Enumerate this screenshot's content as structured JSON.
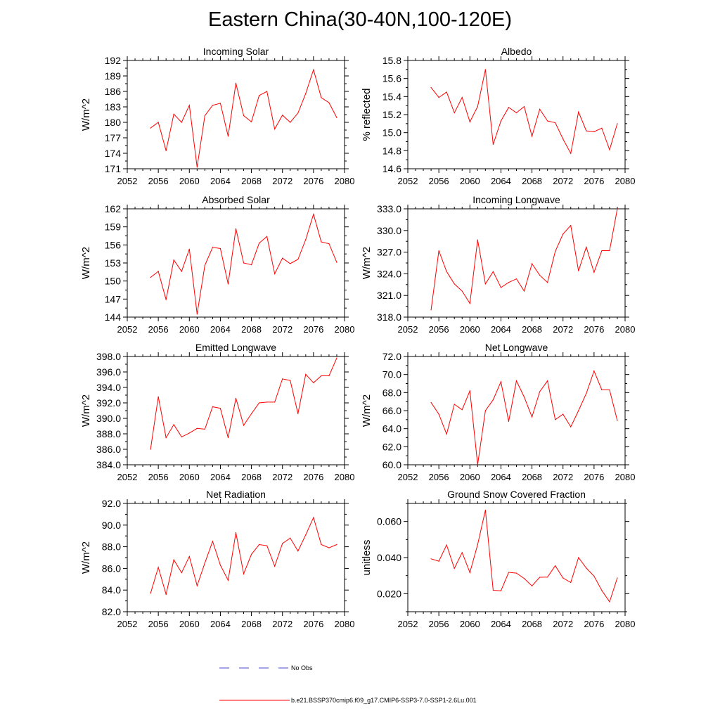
{
  "title": "Eastern China(30-40N,100-120E)",
  "colors": {
    "model_line": "#ff0000",
    "obs_line": "#4a4ad0",
    "frame": "#000000"
  },
  "legend": {
    "obs_label": "No Obs",
    "model_label": "b.e21.BSSP370cmip6.f09_g17.CMIP6-SSP3-7.0-SSP1-2.6Lu.001"
  },
  "chart_data": [
    {
      "type": "line",
      "title": "Incoming Solar",
      "ylabel": "W/m^2",
      "xlim": [
        2052,
        2080
      ],
      "ylim": [
        171,
        192
      ],
      "xticks": [
        "2052",
        "2056",
        "2060",
        "2064",
        "2068",
        "2072",
        "2076",
        "2080"
      ],
      "yticks": [
        "171",
        "174",
        "177",
        "180",
        "183",
        "186",
        "189",
        "192"
      ],
      "x": [
        2055,
        2056,
        2057,
        2058,
        2059,
        2060,
        2061,
        2062,
        2063,
        2064,
        2065,
        2066,
        2067,
        2068,
        2069,
        2070,
        2071,
        2072,
        2073,
        2074,
        2075,
        2076,
        2077,
        2078,
        2079
      ],
      "series": [
        {
          "values": [
            178.9,
            180.0,
            174.5,
            181.6,
            180.0,
            183.3,
            171.3,
            181.3,
            183.3,
            183.7,
            177.3,
            187.6,
            181.3,
            180.1,
            185.2,
            186.0,
            178.7,
            181.4,
            180.0,
            181.8,
            185.6,
            190.2,
            184.8,
            183.8,
            180.9
          ]
        }
      ],
      "grid": false
    },
    {
      "type": "line",
      "title": "Albedo",
      "ylabel": "% reflected",
      "xlim": [
        2052,
        2080
      ],
      "ylim": [
        14.6,
        15.8
      ],
      "xticks": [
        "2052",
        "2056",
        "2060",
        "2064",
        "2068",
        "2072",
        "2076",
        "2080"
      ],
      "yticks": [
        "14.6",
        "14.8",
        "15.0",
        "15.2",
        "15.4",
        "15.6",
        "15.8"
      ],
      "x": [
        2055,
        2056,
        2057,
        2058,
        2059,
        2060,
        2061,
        2062,
        2063,
        2064,
        2065,
        2066,
        2067,
        2068,
        2069,
        2070,
        2071,
        2072,
        2073,
        2074,
        2075,
        2076,
        2077,
        2078,
        2079
      ],
      "series": [
        {
          "values": [
            15.5,
            15.39,
            15.45,
            15.22,
            15.39,
            15.12,
            15.29,
            15.7,
            14.87,
            15.13,
            15.28,
            15.22,
            15.29,
            14.96,
            15.26,
            15.13,
            15.11,
            14.93,
            14.77,
            15.23,
            15.02,
            15.01,
            15.05,
            14.81,
            15.1
          ]
        }
      ],
      "grid": false
    },
    {
      "type": "line",
      "title": "Absorbed Solar",
      "ylabel": "W/m^2",
      "xlim": [
        2052,
        2080
      ],
      "ylim": [
        144,
        162
      ],
      "xticks": [
        "2052",
        "2056",
        "2060",
        "2064",
        "2068",
        "2072",
        "2076",
        "2080"
      ],
      "yticks": [
        "144",
        "147",
        "150",
        "153",
        "156",
        "159",
        "162"
      ],
      "x": [
        2055,
        2056,
        2057,
        2058,
        2059,
        2060,
        2061,
        2062,
        2063,
        2064,
        2065,
        2066,
        2067,
        2068,
        2069,
        2070,
        2071,
        2072,
        2073,
        2074,
        2075,
        2076,
        2077,
        2078,
        2079
      ],
      "series": [
        {
          "values": [
            150.6,
            151.6,
            146.9,
            153.5,
            151.6,
            155.3,
            144.5,
            152.6,
            155.6,
            155.4,
            149.5,
            158.7,
            153.0,
            152.7,
            156.3,
            157.4,
            151.2,
            153.8,
            152.9,
            153.6,
            156.9,
            161.1,
            156.5,
            156.2,
            153.1
          ]
        }
      ],
      "grid": false
    },
    {
      "type": "line",
      "title": "Incoming Longwave",
      "ylabel": "W/m^2",
      "xlim": [
        2052,
        2080
      ],
      "ylim": [
        318.0,
        333.0
      ],
      "xticks": [
        "2052",
        "2056",
        "2060",
        "2064",
        "2068",
        "2072",
        "2076",
        "2080"
      ],
      "yticks": [
        "318.0",
        "321.0",
        "324.0",
        "327.0",
        "330.0",
        "333.0"
      ],
      "x": [
        2055,
        2056,
        2057,
        2058,
        2059,
        2060,
        2061,
        2062,
        2063,
        2064,
        2065,
        2066,
        2067,
        2068,
        2069,
        2070,
        2071,
        2072,
        2073,
        2074,
        2075,
        2076,
        2077,
        2078,
        2079
      ],
      "series": [
        {
          "values": [
            319.0,
            327.2,
            324.3,
            322.6,
            321.6,
            319.9,
            328.7,
            322.6,
            324.3,
            322.1,
            322.8,
            323.3,
            321.6,
            325.4,
            323.8,
            322.8,
            327.1,
            329.5,
            330.7,
            324.4,
            327.7,
            324.2,
            327.2,
            327.2,
            333.0
          ]
        }
      ],
      "grid": false
    },
    {
      "type": "line",
      "title": "Emitted Longwave",
      "ylabel": "W/m^2",
      "xlim": [
        2052,
        2080
      ],
      "ylim": [
        384.0,
        398.0
      ],
      "xticks": [
        "2052",
        "2056",
        "2060",
        "2064",
        "2068",
        "2072",
        "2076",
        "2080"
      ],
      "yticks": [
        "384.0",
        "386.0",
        "388.0",
        "390.0",
        "392.0",
        "394.0",
        "396.0",
        "398.0"
      ],
      "x": [
        2055,
        2056,
        2057,
        2058,
        2059,
        2060,
        2061,
        2062,
        2063,
        2064,
        2065,
        2066,
        2067,
        2068,
        2069,
        2070,
        2071,
        2072,
        2073,
        2074,
        2075,
        2076,
        2077,
        2078,
        2079
      ],
      "series": [
        {
          "values": [
            386.0,
            392.8,
            387.5,
            389.2,
            387.6,
            388.1,
            388.7,
            388.6,
            391.5,
            391.3,
            387.5,
            392.6,
            389.1,
            390.6,
            392.0,
            392.1,
            392.1,
            395.1,
            394.9,
            390.6,
            395.7,
            394.6,
            395.5,
            395.5,
            397.8
          ]
        }
      ],
      "grid": false
    },
    {
      "type": "line",
      "title": "Net Longwave",
      "ylabel": "W/m^2",
      "xlim": [
        2052,
        2080
      ],
      "ylim": [
        60.0,
        72.0
      ],
      "xticks": [
        "2052",
        "2056",
        "2060",
        "2064",
        "2068",
        "2072",
        "2076",
        "2080"
      ],
      "yticks": [
        "60.0",
        "62.0",
        "64.0",
        "66.0",
        "68.0",
        "70.0",
        "72.0"
      ],
      "x": [
        2055,
        2056,
        2057,
        2058,
        2059,
        2060,
        2061,
        2062,
        2063,
        2064,
        2065,
        2066,
        2067,
        2068,
        2069,
        2070,
        2071,
        2072,
        2073,
        2074,
        2075,
        2076,
        2077,
        2078,
        2079
      ],
      "series": [
        {
          "values": [
            66.9,
            65.6,
            63.4,
            66.7,
            66.1,
            68.2,
            60.0,
            66.0,
            67.2,
            69.2,
            64.8,
            69.3,
            67.5,
            65.3,
            68.1,
            69.3,
            65.0,
            65.6,
            64.2,
            66.0,
            67.9,
            70.4,
            68.3,
            68.3,
            64.9
          ]
        }
      ],
      "grid": false
    },
    {
      "type": "line",
      "title": "Net Radiation",
      "ylabel": "W/m^2",
      "xlim": [
        2052,
        2080
      ],
      "ylim": [
        82.0,
        92.0
      ],
      "xticks": [
        "2052",
        "2056",
        "2060",
        "2064",
        "2068",
        "2072",
        "2076",
        "2080"
      ],
      "yticks": [
        "82.0",
        "84.0",
        "86.0",
        "88.0",
        "90.0",
        "92.0"
      ],
      "x": [
        2055,
        2056,
        2057,
        2058,
        2059,
        2060,
        2061,
        2062,
        2063,
        2064,
        2065,
        2066,
        2067,
        2068,
        2069,
        2070,
        2071,
        2072,
        2073,
        2074,
        2075,
        2076,
        2077,
        2078,
        2079
      ],
      "series": [
        {
          "values": [
            83.7,
            86.1,
            83.6,
            86.8,
            85.6,
            87.1,
            84.4,
            86.5,
            88.5,
            86.3,
            84.9,
            89.3,
            85.5,
            87.3,
            88.2,
            88.1,
            86.2,
            88.3,
            88.8,
            87.6,
            89.1,
            90.7,
            88.2,
            87.9,
            88.2
          ]
        }
      ],
      "grid": false
    },
    {
      "type": "line",
      "title": "Ground Snow Covered Fraction",
      "ylabel": "unitless",
      "xlim": [
        2052,
        2080
      ],
      "ylim": [
        0.01,
        0.07
      ],
      "xticks": [
        "2052",
        "2056",
        "2060",
        "2064",
        "2068",
        "2072",
        "2076",
        "2080"
      ],
      "yticks": [
        "0.020",
        "0.040",
        "0.060"
      ],
      "ytick_values": [
        0.02,
        0.04,
        0.06
      ],
      "x": [
        2055,
        2056,
        2057,
        2058,
        2059,
        2060,
        2061,
        2062,
        2063,
        2064,
        2065,
        2066,
        2067,
        2068,
        2069,
        2070,
        2071,
        2072,
        2073,
        2074,
        2075,
        2076,
        2077,
        2078,
        2079
      ],
      "series": [
        {
          "values": [
            0.0393,
            0.038,
            0.047,
            0.034,
            0.0428,
            0.0317,
            0.0472,
            0.0663,
            0.0219,
            0.0216,
            0.0318,
            0.0314,
            0.0284,
            0.0243,
            0.0291,
            0.0292,
            0.0355,
            0.0287,
            0.0262,
            0.04,
            0.0342,
            0.0297,
            0.0218,
            0.0155,
            0.0287
          ]
        }
      ],
      "grid": false
    }
  ]
}
